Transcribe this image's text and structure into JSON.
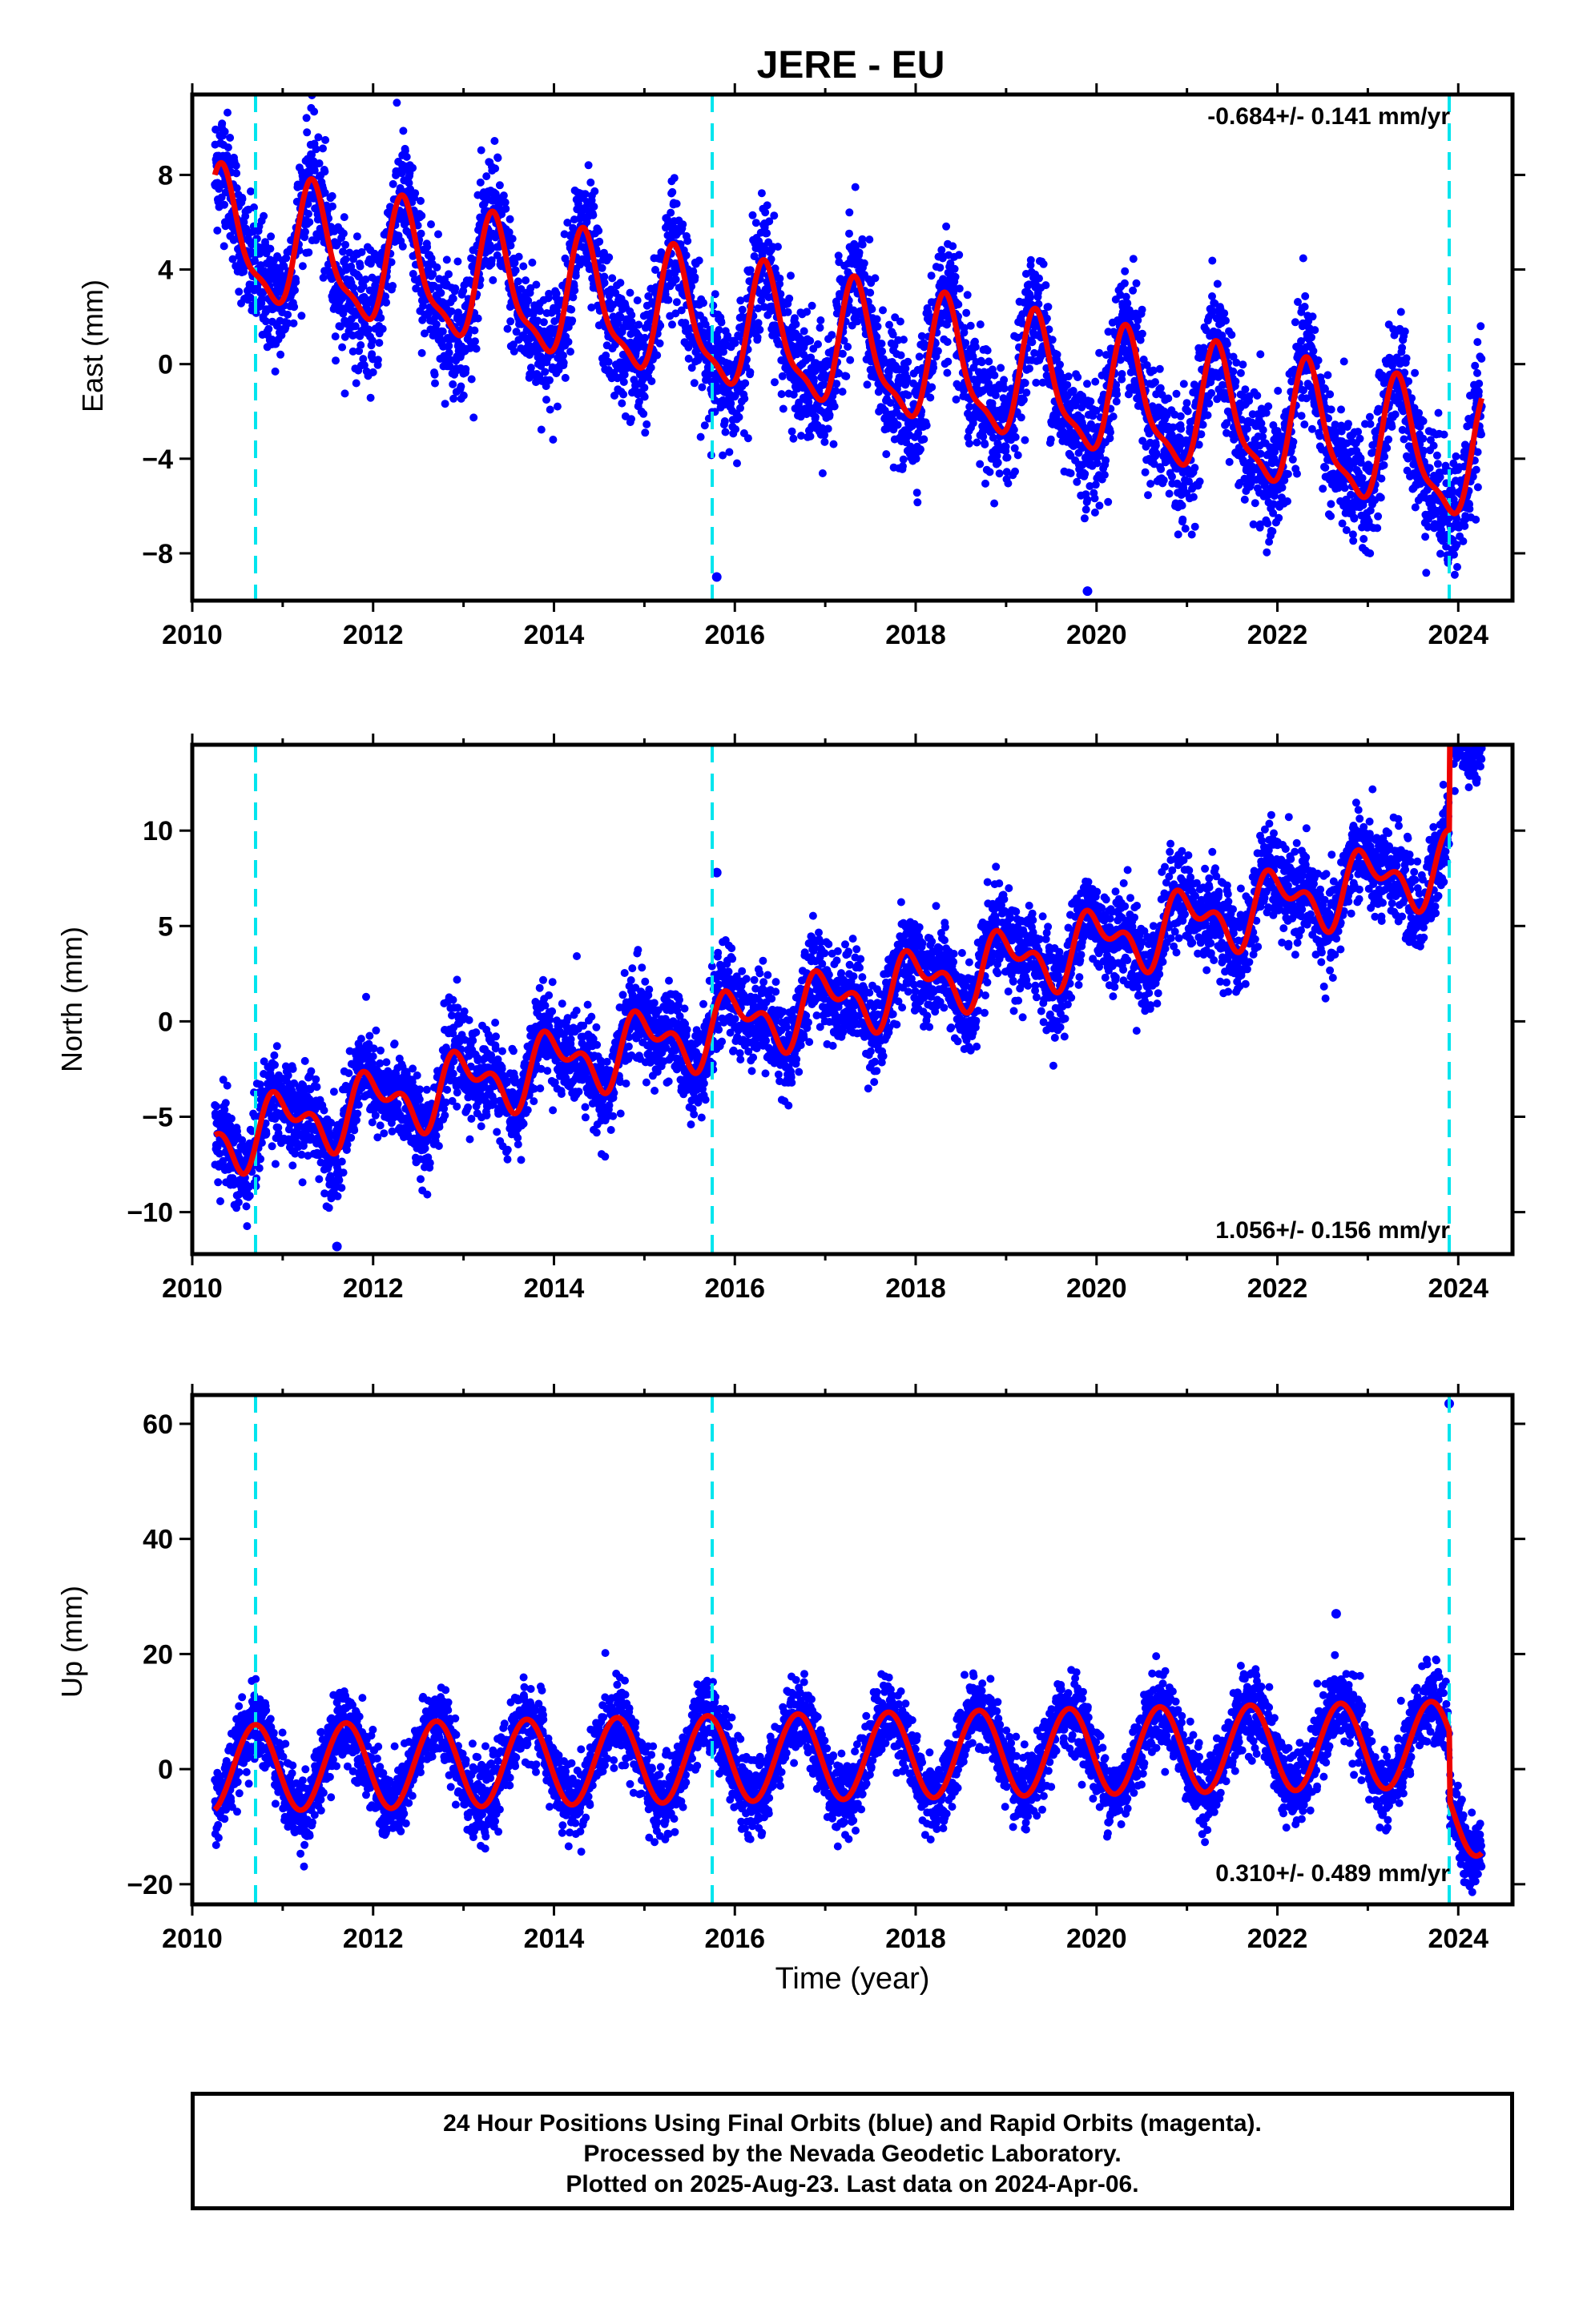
{
  "chart_data": {
    "title": "JERE - EU",
    "type": "scatter",
    "x_range": [
      2010,
      2024.6
    ],
    "x_ticks": [
      2010,
      2012,
      2014,
      2016,
      2018,
      2020,
      2022,
      2024
    ],
    "xlabel": "Time (year)",
    "data_start": 2010.25,
    "data_end": 2024.26,
    "offset_lines": [
      2010.7,
      2015.75,
      2023.9
    ],
    "colors": {
      "data": "#0000ff",
      "model": "#ee0000",
      "offsets": "#00e5ee"
    },
    "panels": [
      {
        "name": "east",
        "ylabel": "East (mm)",
        "ylim": [
          -10,
          11.4
        ],
        "y_ticks": [
          -8,
          -4,
          0,
          4,
          8
        ],
        "rate_label": "-0.684+/- 0.141 mm/yr",
        "rate_position": "top-right",
        "trend": {
          "rate": -0.684,
          "value_at_2010": 5.5
        },
        "seasonal": {
          "annual_amplitude": 2.5,
          "annual_peak": 0.35,
          "semiannual_amplitude": 0.8,
          "semiannual_peak": 0.3
        },
        "scatter_sd": 1.3,
        "outliers": [
          [
            2015.8,
            -9.0
          ],
          [
            2019.9,
            -9.6
          ]
        ]
      },
      {
        "name": "north",
        "ylabel": "North (mm)",
        "ylim": [
          -12.2,
          14.5
        ],
        "y_ticks": [
          -10,
          -5,
          0,
          5,
          10
        ],
        "rate_label": "1.056+/- 0.156 mm/yr",
        "rate_position": "bottom-right",
        "trend": {
          "rate": 1.056,
          "value_at_2010": -6.5
        },
        "seasonal": {
          "annual_amplitude": 1.4,
          "annual_peak": 0.0,
          "semiannual_amplitude": 0.9,
          "semiannual_peak": 0.35
        },
        "scatter_sd": 1.2,
        "outliers": [
          [
            2015.8,
            7.8
          ],
          [
            2011.6,
            -11.8
          ]
        ],
        "steps": [
          [
            2023.9,
            6.0
          ]
        ]
      },
      {
        "name": "up",
        "ylabel": "Up (mm)",
        "ylim": [
          -23.5,
          65
        ],
        "y_ticks": [
          -20,
          0,
          20,
          40,
          60
        ],
        "rate_label": "0.310+/- 0.489 mm/yr",
        "rate_position": "bottom-right",
        "trend": {
          "rate": 0.31,
          "value_at_2010": 0.0
        },
        "seasonal": {
          "annual_amplitude": 7.5,
          "annual_peak": 0.7,
          "semiannual_amplitude": 0.0,
          "semiannual_peak": 0.0
        },
        "scatter_sd": 3.2,
        "outliers": [
          [
            2023.9,
            63.5
          ],
          [
            2022.65,
            27.0
          ]
        ],
        "steps": [
          [
            2023.9,
            -12.0
          ]
        ]
      }
    ]
  },
  "footer": {
    "line1": "24 Hour Positions Using Final Orbits (blue) and Rapid Orbits (magenta).",
    "line2": "Processed by the Nevada Geodetic Laboratory.",
    "line3": "Plotted on 2025-Aug-23. Last data on 2024-Apr-06."
  }
}
